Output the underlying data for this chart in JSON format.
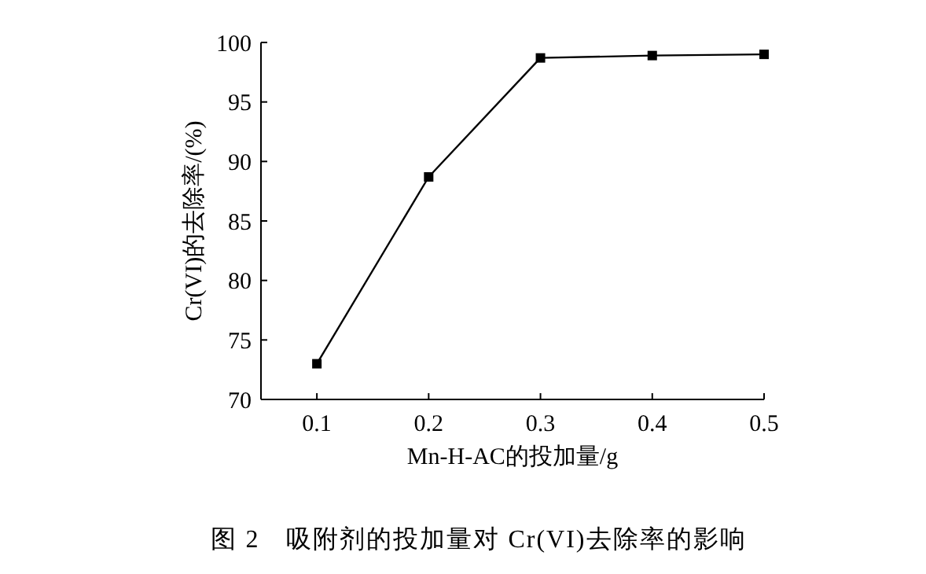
{
  "chart_data": {
    "type": "line",
    "title": "图 2　吸附剂的投加量对 Cr(VI)去除率的影响",
    "xlabel": "Mn-H-AC的投加量/g",
    "ylabel": "Cr(VI)的去除率/(%)",
    "x": [
      0.1,
      0.2,
      0.3,
      0.4,
      0.5
    ],
    "series": [
      {
        "color": "#000000",
        "values": [
          73.0,
          88.7,
          98.7,
          98.9,
          99.0
        ]
      }
    ],
    "xlim": [
      0.05,
      0.5
    ],
    "xticks": [
      0.1,
      0.2,
      0.3,
      0.4,
      0.5
    ],
    "ylim": [
      70,
      100
    ],
    "yticks": [
      70,
      75,
      80,
      85,
      90,
      95,
      100
    ],
    "marker": "square",
    "line_style": "solid"
  }
}
